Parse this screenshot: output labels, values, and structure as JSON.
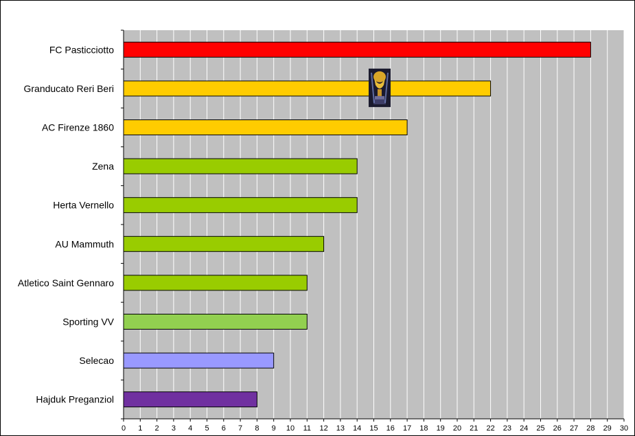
{
  "chart_data": {
    "type": "bar",
    "orientation": "horizontal",
    "categories": [
      "FC Pasticciotto",
      "Granducato Reri Beri",
      "AC Firenze 1860",
      "Zena",
      "Herta Vernello",
      "AU Mammuth",
      "Atletico Saint Gennaro",
      "Sporting VV",
      "Selecao",
      "Hajduk Preganziol"
    ],
    "values": [
      28,
      22,
      17,
      14,
      14,
      12,
      11,
      11,
      9,
      8
    ],
    "bar_colors": [
      "#ff0000",
      "#ffcc00",
      "#ffcc00",
      "#99cc00",
      "#99cc00",
      "#99cc00",
      "#99cc00",
      "#92d050",
      "#9999ff",
      "#7030a0"
    ],
    "xlim": [
      0,
      30
    ],
    "xticks": [
      "0",
      "1",
      "2",
      "3",
      "4",
      "5",
      "6",
      "7",
      "8",
      "9",
      "10",
      "11",
      "12",
      "13",
      "14",
      "15",
      "16",
      "17",
      "18",
      "19",
      "20",
      "21",
      "22",
      "23",
      "24",
      "25",
      "26",
      "27",
      "28",
      "29",
      "30"
    ],
    "title": "",
    "xlabel": "",
    "ylabel": "",
    "grid": "vertical",
    "plot_background": "#c0c0c0",
    "annotation_icon": "trophy-icon"
  }
}
